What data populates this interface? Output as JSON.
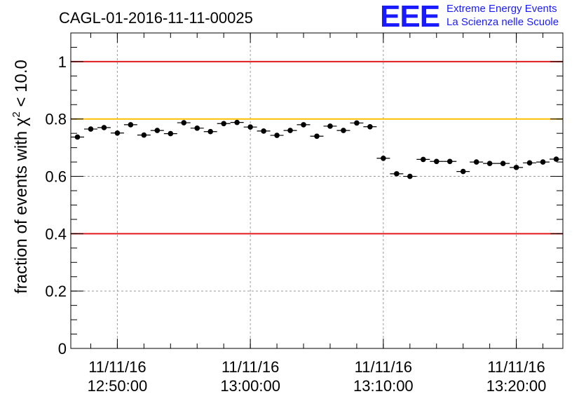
{
  "logo": {
    "mark": "EEE",
    "line1": "Extreme Energy Events",
    "line2": "La Scienza nelle Scuole",
    "color": "#1a1aff"
  },
  "chart_data": {
    "type": "scatter",
    "title": "CAGL-01-2016-11-11-00025",
    "ylabel": "fraction of events with χ² < 10.0",
    "xlabel": "",
    "ylim": [
      0,
      1.1
    ],
    "xlim": [
      "2016-11-11 12:46:30",
      "2016-11-11 13:23:30"
    ],
    "grid": true,
    "yticks": [
      {
        "value": 0,
        "label": "0"
      },
      {
        "value": 0.2,
        "label": "0.2"
      },
      {
        "value": 0.4,
        "label": "0.4"
      },
      {
        "value": 0.6,
        "label": "0.6"
      },
      {
        "value": 0.8,
        "label": "0.8"
      },
      {
        "value": 1,
        "label": "1"
      }
    ],
    "xticks": [
      {
        "time": "2016-11-11 12:50:00",
        "line1": "11/11/16",
        "line2": "12:50:00"
      },
      {
        "time": "2016-11-11 13:00:00",
        "line1": "11/11/16",
        "line2": "13:00:00"
      },
      {
        "time": "2016-11-11 13:10:00",
        "line1": "11/11/16",
        "line2": "13:10:00"
      },
      {
        "time": "2016-11-11 13:20:00",
        "line1": "11/11/16",
        "line2": "13:20:00"
      }
    ],
    "reference_lines": [
      {
        "y": 1.0,
        "color": "#e31a1c"
      },
      {
        "y": 0.8,
        "color": "#ffbf00"
      },
      {
        "y": 0.4,
        "color": "#e31a1c"
      }
    ],
    "series": [
      {
        "color": "#000000",
        "points": [
          {
            "t": "2016-11-11 12:47:00",
            "y": 0.737
          },
          {
            "t": "2016-11-11 12:48:00",
            "y": 0.765
          },
          {
            "t": "2016-11-11 12:49:00",
            "y": 0.77
          },
          {
            "t": "2016-11-11 12:50:00",
            "y": 0.751
          },
          {
            "t": "2016-11-11 12:51:00",
            "y": 0.78
          },
          {
            "t": "2016-11-11 12:52:00",
            "y": 0.744
          },
          {
            "t": "2016-11-11 12:53:00",
            "y": 0.76
          },
          {
            "t": "2016-11-11 12:54:00",
            "y": 0.749
          },
          {
            "t": "2016-11-11 12:55:00",
            "y": 0.787
          },
          {
            "t": "2016-11-11 12:56:00",
            "y": 0.768
          },
          {
            "t": "2016-11-11 12:57:00",
            "y": 0.756
          },
          {
            "t": "2016-11-11 12:58:00",
            "y": 0.784
          },
          {
            "t": "2016-11-11 12:59:00",
            "y": 0.788
          },
          {
            "t": "2016-11-11 13:00:00",
            "y": 0.772
          },
          {
            "t": "2016-11-11 13:01:00",
            "y": 0.758
          },
          {
            "t": "2016-11-11 13:02:00",
            "y": 0.743
          },
          {
            "t": "2016-11-11 13:03:00",
            "y": 0.76
          },
          {
            "t": "2016-11-11 13:04:00",
            "y": 0.78
          },
          {
            "t": "2016-11-11 13:05:00",
            "y": 0.74
          },
          {
            "t": "2016-11-11 13:06:00",
            "y": 0.775
          },
          {
            "t": "2016-11-11 13:07:00",
            "y": 0.76
          },
          {
            "t": "2016-11-11 13:08:00",
            "y": 0.786
          },
          {
            "t": "2016-11-11 13:09:00",
            "y": 0.773
          },
          {
            "t": "2016-11-11 13:10:00",
            "y": 0.663
          },
          {
            "t": "2016-11-11 13:11:00",
            "y": 0.609
          },
          {
            "t": "2016-11-11 13:12:00",
            "y": 0.6
          },
          {
            "t": "2016-11-11 13:13:00",
            "y": 0.659
          },
          {
            "t": "2016-11-11 13:14:00",
            "y": 0.652
          },
          {
            "t": "2016-11-11 13:15:00",
            "y": 0.652
          },
          {
            "t": "2016-11-11 13:16:00",
            "y": 0.617
          },
          {
            "t": "2016-11-11 13:17:00",
            "y": 0.65
          },
          {
            "t": "2016-11-11 13:18:00",
            "y": 0.645
          },
          {
            "t": "2016-11-11 13:19:00",
            "y": 0.645
          },
          {
            "t": "2016-11-11 13:20:00",
            "y": 0.631
          },
          {
            "t": "2016-11-11 13:21:00",
            "y": 0.647
          },
          {
            "t": "2016-11-11 13:22:00",
            "y": 0.65
          },
          {
            "t": "2016-11-11 13:23:00",
            "y": 0.66
          }
        ],
        "y_error": 0.008,
        "x_halfwidth_minutes": 0.5
      }
    ]
  }
}
